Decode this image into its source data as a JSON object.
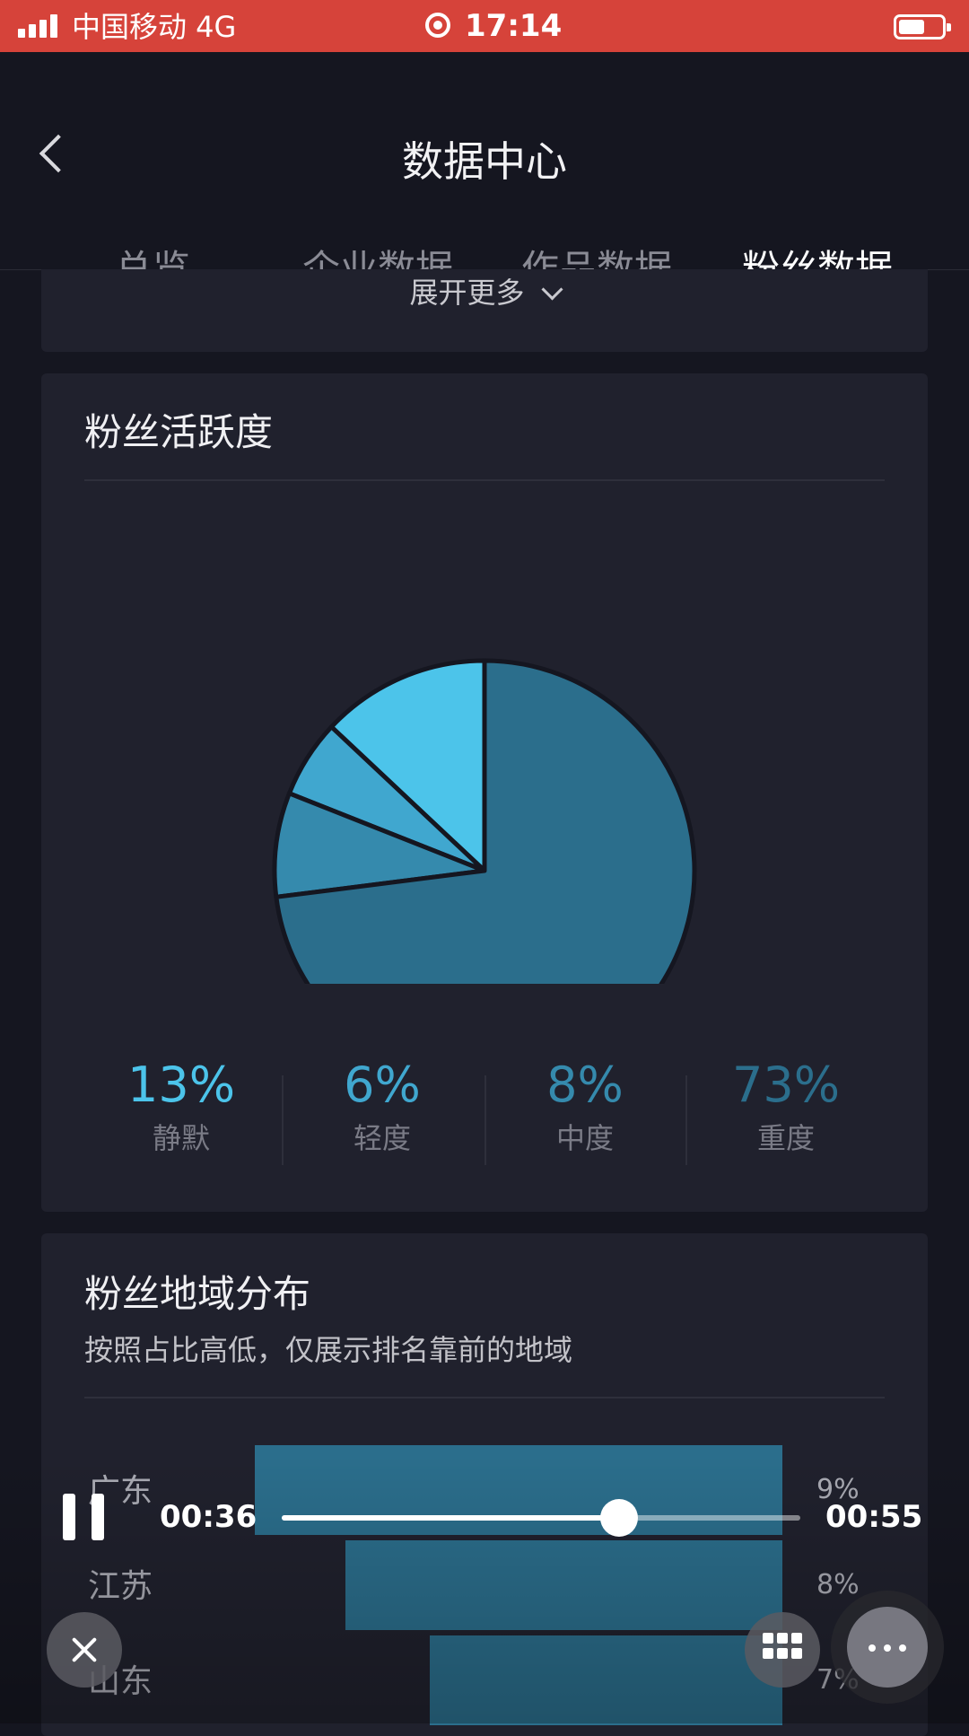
{
  "status_bar": {
    "carrier": "中国移动  4G",
    "time": "17:14"
  },
  "header": {
    "title": "数据中心",
    "tabs": [
      {
        "label": "总览",
        "active": false
      },
      {
        "label": "企业数据",
        "active": false
      },
      {
        "label": "作品数据",
        "active": false
      },
      {
        "label": "粉丝数据",
        "active": true
      }
    ]
  },
  "expand": {
    "label": "展开更多"
  },
  "fan_activity": {
    "title": "粉丝活跃度",
    "stats": [
      {
        "value": "13%",
        "label": "静默",
        "color": "#4cc4ea"
      },
      {
        "value": "6%",
        "label": "轻度",
        "color": "#40a7cf"
      },
      {
        "value": "8%",
        "label": "中度",
        "color": "#358aad"
      },
      {
        "value": "73%",
        "label": "重度",
        "color": "#2b6e8c"
      }
    ]
  },
  "chart_data": {
    "type": "pie",
    "categories": [
      "静默",
      "轻度",
      "中度",
      "重度"
    ],
    "values": [
      13,
      6,
      8,
      73
    ],
    "colors": [
      "#4cc4ea",
      "#40a7cf",
      "#358aad",
      "#2b6e8c"
    ]
  },
  "fan_region": {
    "title": "粉丝地域分布",
    "subtitle": "按照占比高低，仅展示排名靠前的地域",
    "rows": [
      {
        "name": "广东",
        "percent": "9%",
        "value": 9
      },
      {
        "name": "江苏",
        "percent": "8%",
        "value": 8
      },
      {
        "name": "山东",
        "percent": "7%",
        "value": 7
      }
    ]
  },
  "player": {
    "current_time": "00:36",
    "total_time": "00:55",
    "progress": 0.65
  }
}
